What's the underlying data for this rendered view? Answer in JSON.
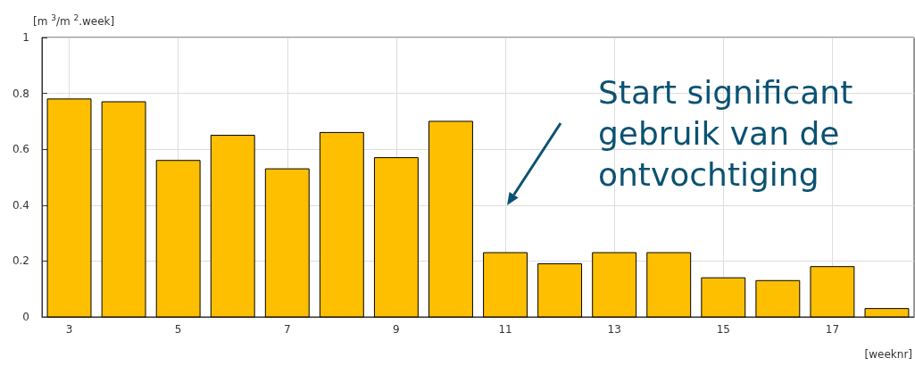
{
  "chart_data": {
    "type": "bar",
    "ylabel": "[m $^{3}$/m $^{2}$.week]",
    "xlabel": "[weeknr]",
    "x": [
      3,
      4,
      5,
      6,
      7,
      8,
      9,
      10,
      11,
      12,
      13,
      14,
      15,
      16,
      17,
      18
    ],
    "values": [
      0.78,
      0.77,
      0.56,
      0.65,
      0.53,
      0.66,
      0.57,
      0.7,
      0.23,
      0.19,
      0.23,
      0.23,
      0.14,
      0.13,
      0.18,
      0.03
    ],
    "color": "#fdbf00",
    "xlim": [
      2.5,
      18.5
    ],
    "xticks": [
      3,
      5,
      7,
      9,
      11,
      13,
      15,
      17
    ],
    "ylim": [
      0,
      1
    ],
    "yticks": [
      0,
      0.2,
      0.4,
      0.6,
      0.8,
      1
    ],
    "grid": true,
    "annotations": [
      "Start significant gebruik van de ontvochtiging"
    ]
  }
}
